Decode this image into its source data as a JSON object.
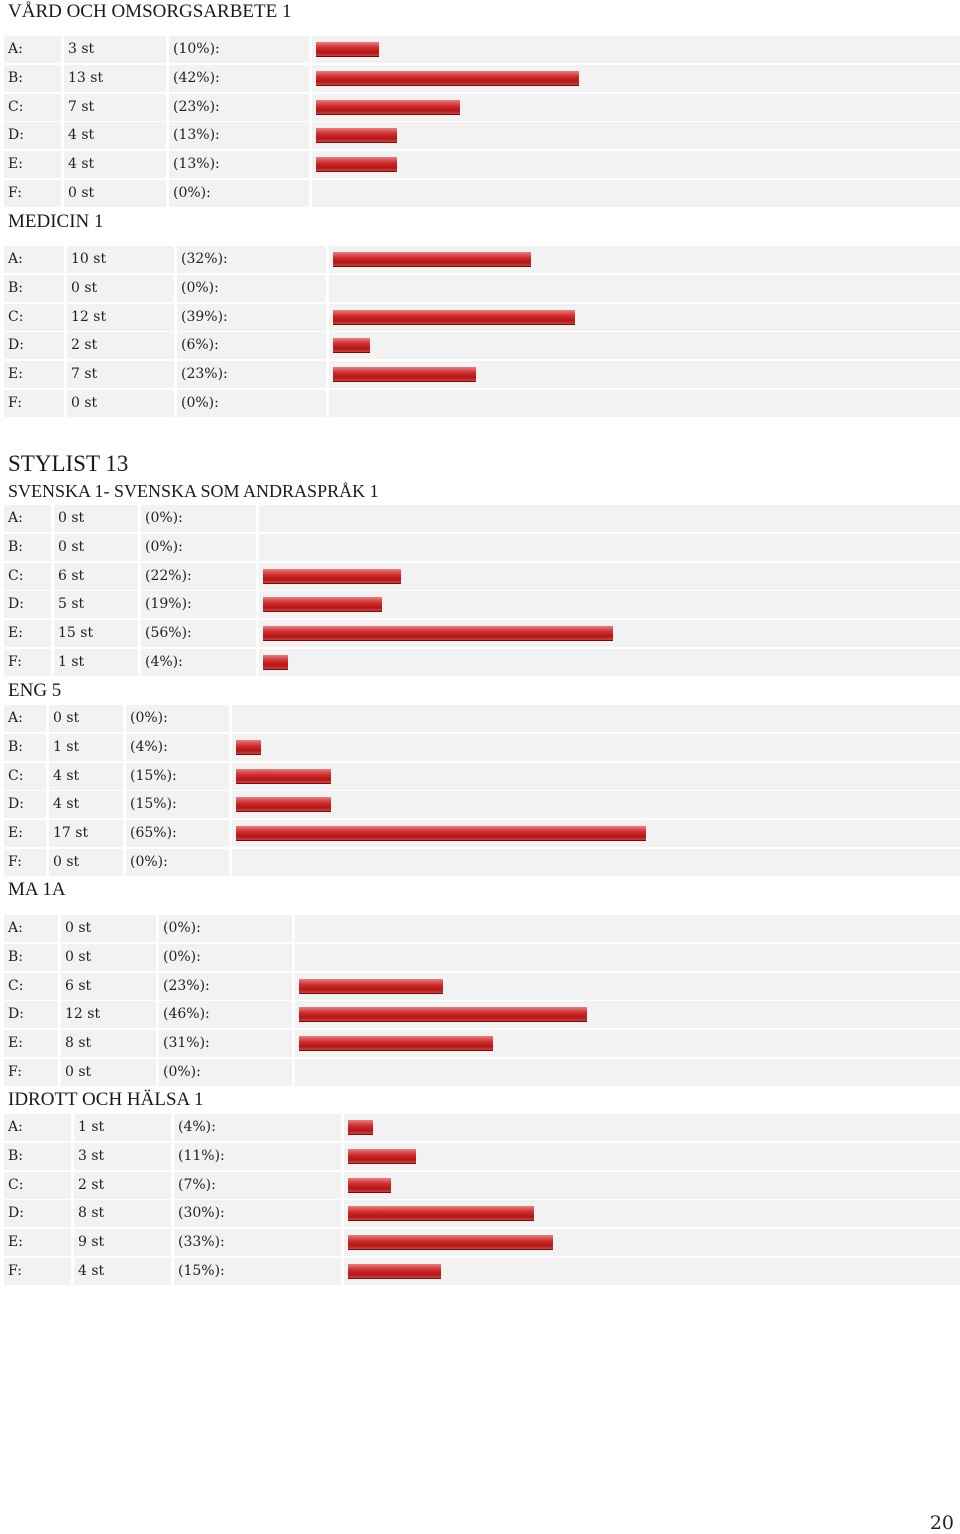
{
  "sections": [
    {
      "title": "VÅRD OCH OMSORGSARBETE 1",
      "rows": [
        {
          "grade": "A:",
          "count": "3 st",
          "percent": "(10%):",
          "value": 10
        },
        {
          "grade": "B:",
          "count": "13 st",
          "percent": "(42%):",
          "value": 42
        },
        {
          "grade": "C:",
          "count": "7 st",
          "percent": "(23%):",
          "value": 23
        },
        {
          "grade": "D:",
          "count": "4 st",
          "percent": "(13%):",
          "value": 13
        },
        {
          "grade": "E:",
          "count": "4 st",
          "percent": "(13%):",
          "value": 13
        },
        {
          "grade": "F:",
          "count": "0 st",
          "percent": "(0%):",
          "value": 0
        }
      ]
    },
    {
      "title": "MEDICIN 1",
      "rows": [
        {
          "grade": "A:",
          "count": "10 st",
          "percent": "(32%):",
          "value": 32
        },
        {
          "grade": "B:",
          "count": "0 st",
          "percent": "(0%):",
          "value": 0
        },
        {
          "grade": "C:",
          "count": "12 st",
          "percent": "(39%):",
          "value": 39
        },
        {
          "grade": "D:",
          "count": "2 st",
          "percent": "(6%):",
          "value": 6
        },
        {
          "grade": "E:",
          "count": "7 st",
          "percent": "(23%):",
          "value": 23
        },
        {
          "grade": "F:",
          "count": "0 st",
          "percent": "(0%):",
          "value": 0
        }
      ]
    },
    {
      "heading": "STYLIST 13",
      "title": "SVENSKA 1- SVENSKA SOM ANDRASPRÅK 1",
      "rows": [
        {
          "grade": "A:",
          "count": "0 st",
          "percent": "(0%):",
          "value": 0
        },
        {
          "grade": "B:",
          "count": "0 st",
          "percent": "(0%):",
          "value": 0
        },
        {
          "grade": "C:",
          "count": "6 st",
          "percent": "(22%):",
          "value": 22
        },
        {
          "grade": "D:",
          "count": "5 st",
          "percent": "(19%):",
          "value": 19
        },
        {
          "grade": "E:",
          "count": "15 st",
          "percent": "(56%):",
          "value": 56
        },
        {
          "grade": "F:",
          "count": "1 st",
          "percent": "(4%):",
          "value": 4
        }
      ]
    },
    {
      "title": "ENG 5",
      "rows": [
        {
          "grade": "A:",
          "count": "0 st",
          "percent": "(0%):",
          "value": 0
        },
        {
          "grade": "B:",
          "count": "1 st",
          "percent": "(4%):",
          "value": 4
        },
        {
          "grade": "C:",
          "count": "4 st",
          "percent": "(15%):",
          "value": 15
        },
        {
          "grade": "D:",
          "count": "4 st",
          "percent": "(15%):",
          "value": 15
        },
        {
          "grade": "E:",
          "count": "17 st",
          "percent": "(65%):",
          "value": 65
        },
        {
          "grade": "F:",
          "count": "0 st",
          "percent": "(0%):",
          "value": 0
        }
      ]
    },
    {
      "title": "MA 1A",
      "rows": [
        {
          "grade": "A:",
          "count": "0 st",
          "percent": "(0%):",
          "value": 0
        },
        {
          "grade": "B:",
          "count": "0 st",
          "percent": "(0%):",
          "value": 0
        },
        {
          "grade": "C:",
          "count": "6 st",
          "percent": "(23%):",
          "value": 23
        },
        {
          "grade": "D:",
          "count": "12 st",
          "percent": "(46%):",
          "value": 46
        },
        {
          "grade": "E:",
          "count": "8 st",
          "percent": "(31%):",
          "value": 31
        },
        {
          "grade": "F:",
          "count": "0 st",
          "percent": "(0%):",
          "value": 0
        }
      ]
    },
    {
      "title": "IDROTT OCH HÄLSA 1",
      "rows": [
        {
          "grade": "A:",
          "count": "1 st",
          "percent": "(4%):",
          "value": 4
        },
        {
          "grade": "B:",
          "count": "3 st",
          "percent": "(11%):",
          "value": 11
        },
        {
          "grade": "C:",
          "count": "2 st",
          "percent": "(7%):",
          "value": 7
        },
        {
          "grade": "D:",
          "count": "8 st",
          "percent": "(30%):",
          "value": 30
        },
        {
          "grade": "E:",
          "count": "9 st",
          "percent": "(33%):",
          "value": 33
        },
        {
          "grade": "F:",
          "count": "4 st",
          "percent": "(15%):",
          "value": 15
        }
      ]
    }
  ],
  "page_number": "20",
  "colors": {
    "bar": "#c62828",
    "row_bg": "#f2f2f2"
  }
}
